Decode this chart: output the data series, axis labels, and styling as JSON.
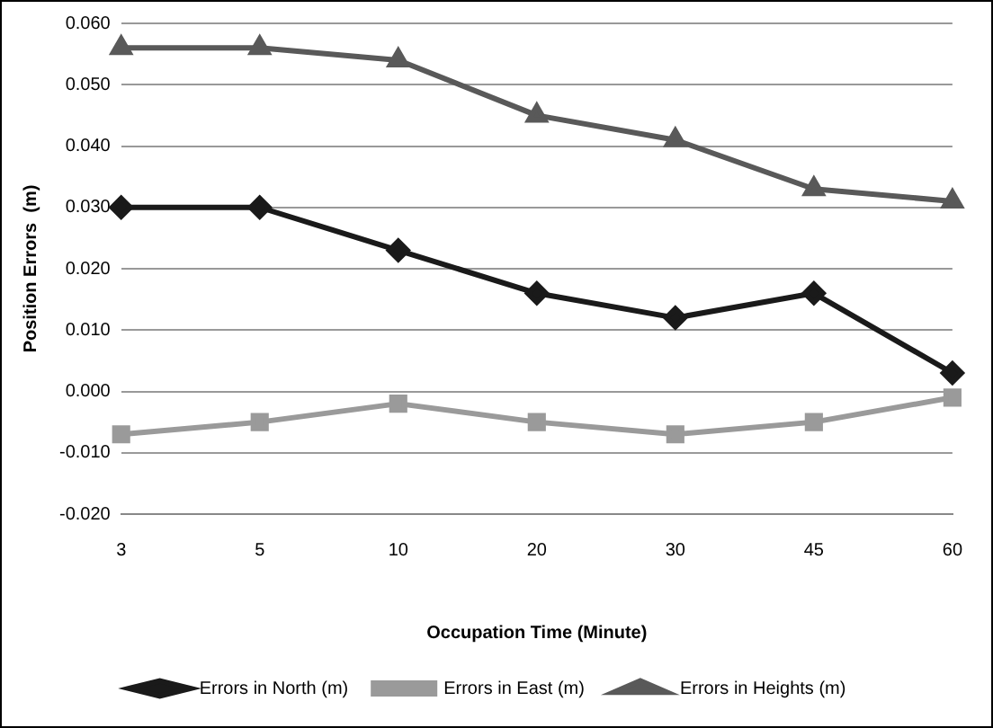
{
  "chart_data": {
    "type": "line",
    "xlabel": "Occupation Time (Minute)",
    "ylabel": "Position Errors  (m)",
    "categories": [
      "3",
      "5",
      "10",
      "20",
      "30",
      "45",
      "60"
    ],
    "series": [
      {
        "name": "Errors in North (m)",
        "color": "#1a1a1a",
        "marker": "diamond",
        "values": [
          0.03,
          0.03,
          0.023,
          0.016,
          0.012,
          0.016,
          0.003
        ]
      },
      {
        "name": "Errors in East (m)",
        "color": "#9a9a9a",
        "marker": "square",
        "values": [
          -0.007,
          -0.005,
          -0.002,
          -0.005,
          -0.007,
          -0.005,
          -0.001
        ]
      },
      {
        "name": "Errors in Heights (m)",
        "color": "#595959",
        "marker": "triangle",
        "values": [
          0.056,
          0.056,
          0.054,
          0.045,
          0.041,
          0.033,
          0.031
        ]
      }
    ],
    "ylim": [
      -0.02,
      0.06
    ],
    "yticks": [
      {
        "value": -0.02,
        "label": "-0.020"
      },
      {
        "value": -0.01,
        "label": "-0.010"
      },
      {
        "value": 0,
        "label": "0.000"
      },
      {
        "value": 0.01,
        "label": "0.010"
      },
      {
        "value": 0.02,
        "label": "0.020"
      },
      {
        "value": 0.03,
        "label": "0.030"
      },
      {
        "value": 0.04,
        "label": "0.040"
      },
      {
        "value": 0.05,
        "label": "0.050"
      },
      {
        "value": 0.06,
        "label": "0.060"
      }
    ],
    "grid": "y",
    "legend": "bottom"
  }
}
